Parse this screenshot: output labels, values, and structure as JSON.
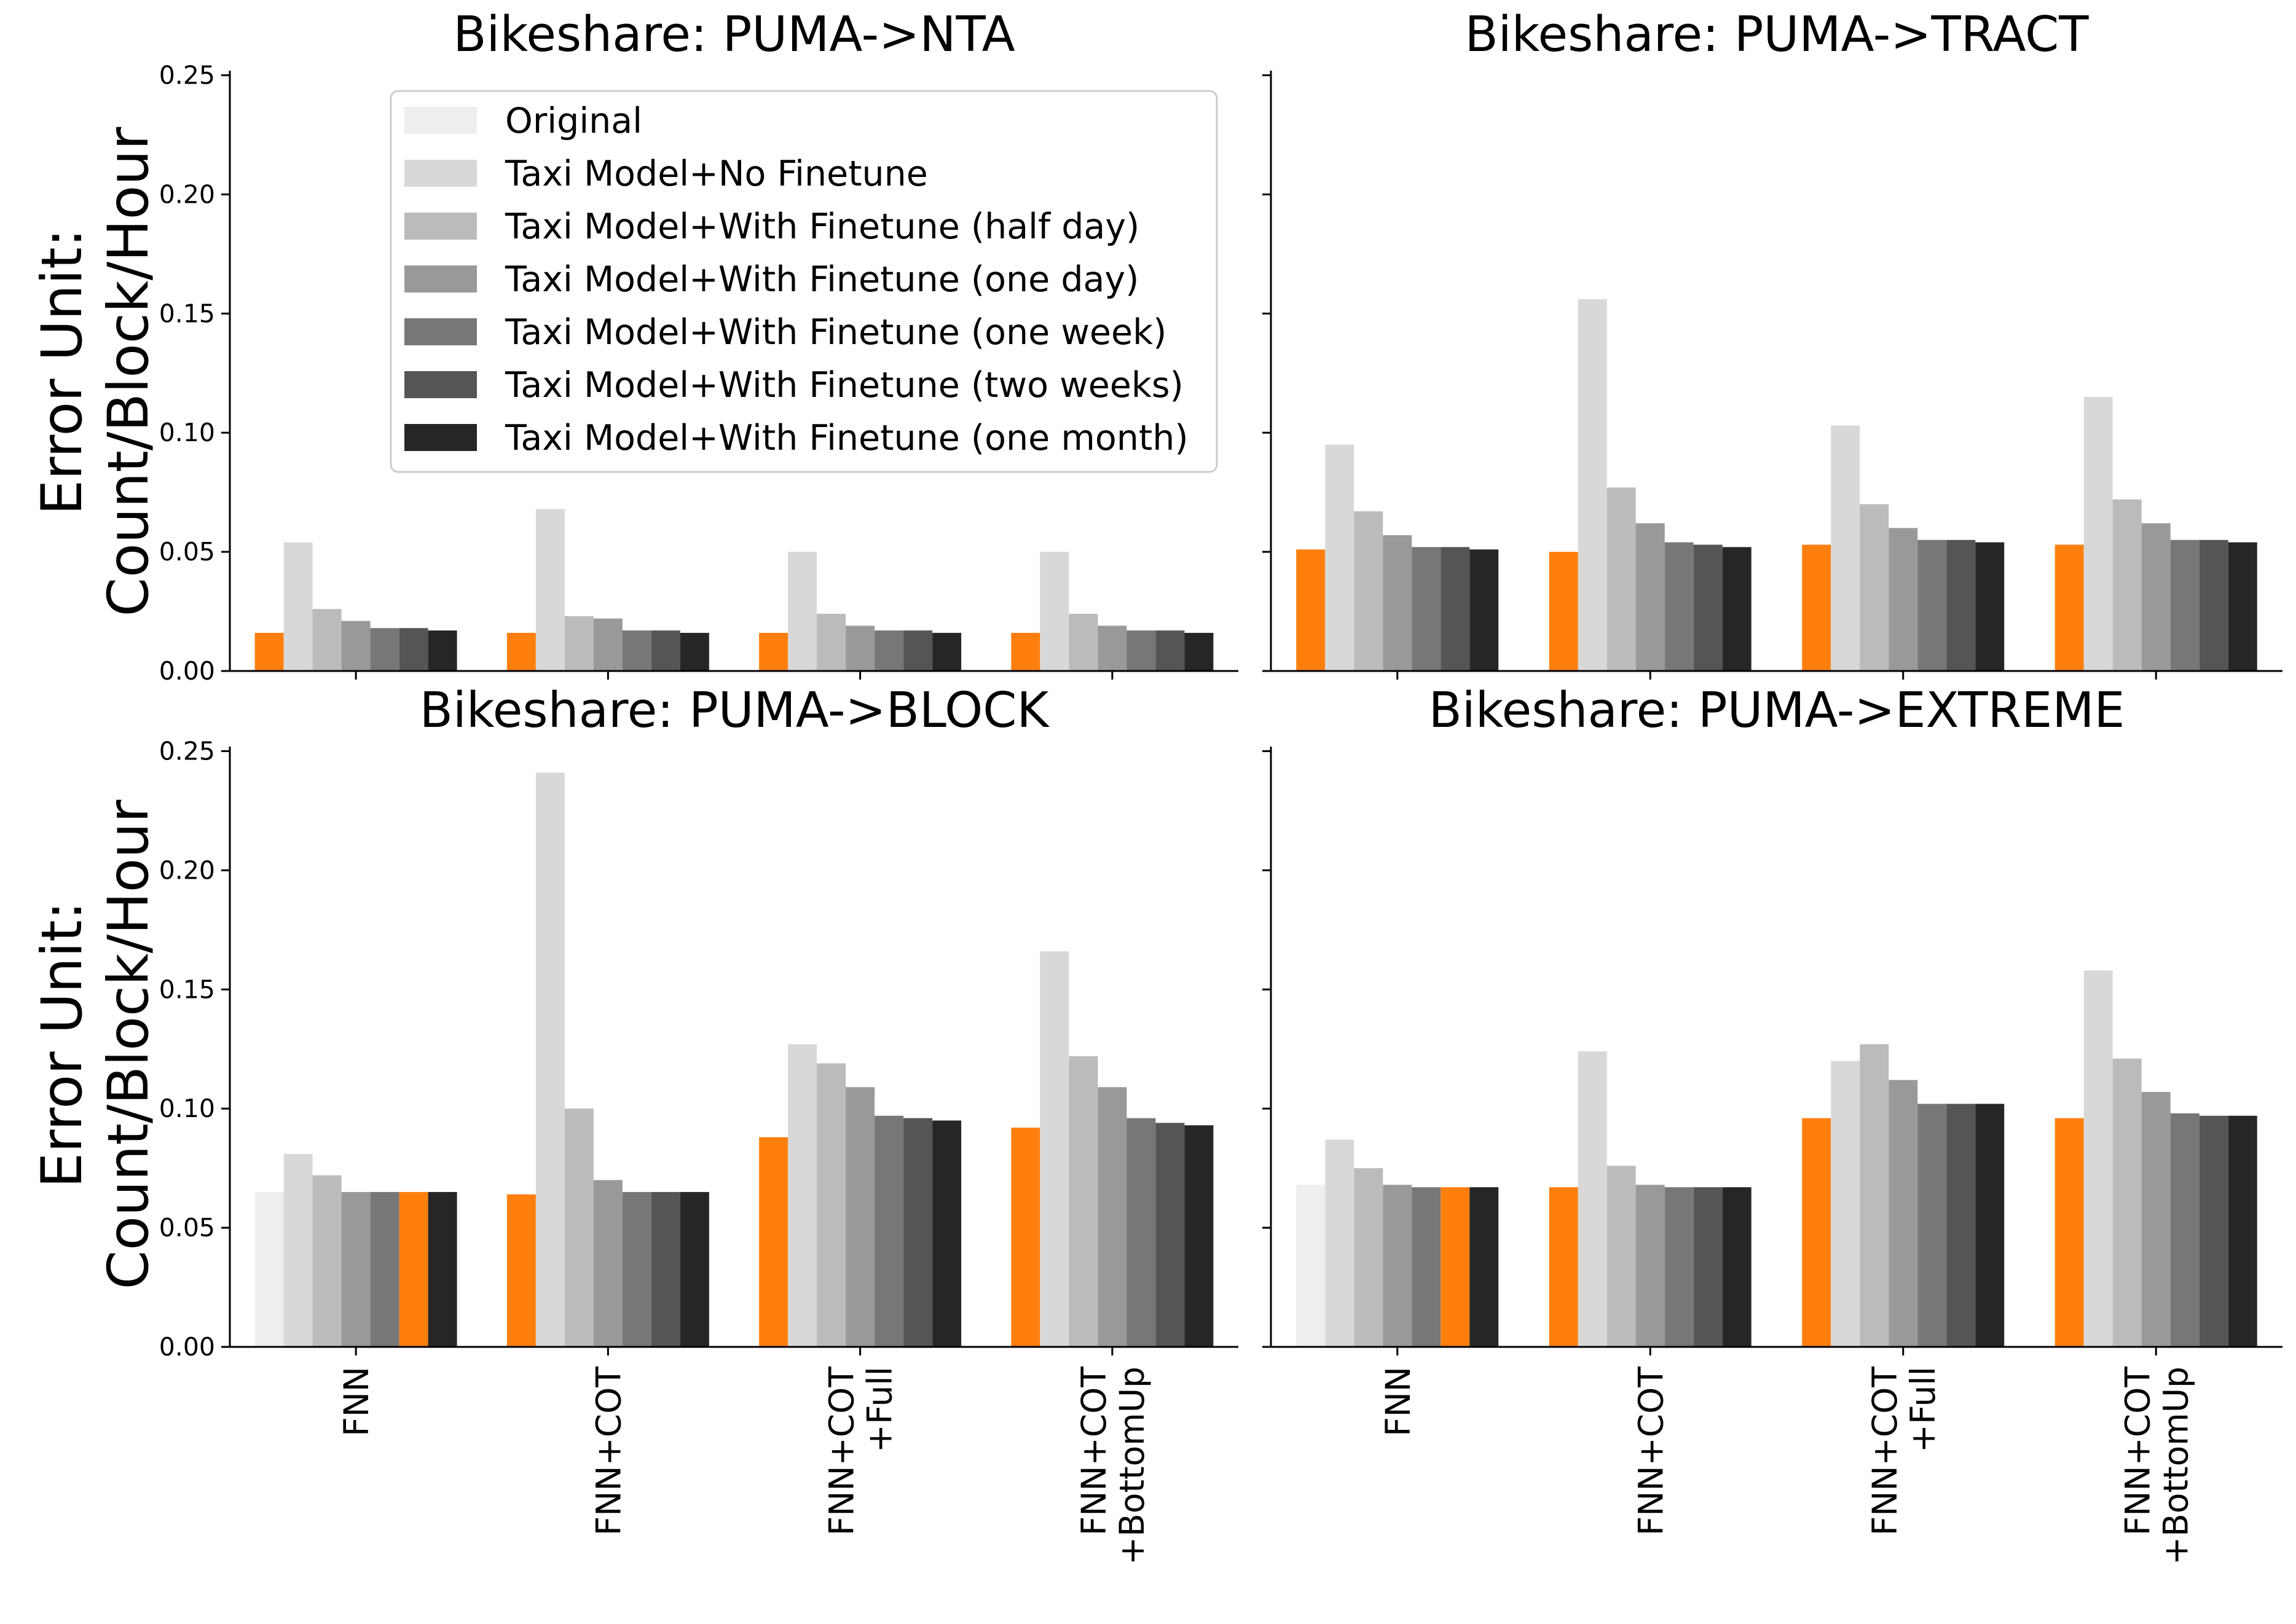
{
  "figure": {
    "ylabel_line1": "Error Unit:",
    "ylabel_line2": "Count/Block/Hour"
  },
  "chart_data": [
    {
      "type": "bar",
      "title": "Bikeshare: PUMA->NTA",
      "categories": [
        "FNN",
        "FNN+COT",
        "FNN+COT\n+Full",
        "FNN+COT\n+BottomUp"
      ],
      "ylim": [
        0,
        0.25
      ],
      "yticks": [
        "0.00",
        "0.05",
        "0.10",
        "0.15",
        "0.20",
        "0.25"
      ],
      "highlight": [
        0,
        0,
        0,
        0
      ],
      "series": [
        {
          "name": "Original",
          "values": [
            0.016,
            0.016,
            0.016,
            0.016
          ]
        },
        {
          "name": "Taxi Model+No Finetune",
          "values": [
            0.054,
            0.068,
            0.05,
            0.05
          ]
        },
        {
          "name": "Taxi Model+With Finetune (half day)",
          "values": [
            0.026,
            0.023,
            0.024,
            0.024
          ]
        },
        {
          "name": "Taxi Model+With Finetune (one day)",
          "values": [
            0.021,
            0.022,
            0.019,
            0.019
          ]
        },
        {
          "name": "Taxi Model+With Finetune (one week)",
          "values": [
            0.018,
            0.017,
            0.017,
            0.017
          ]
        },
        {
          "name": "Taxi Model+With Finetune (two weeks)",
          "values": [
            0.018,
            0.017,
            0.017,
            0.017
          ]
        },
        {
          "name": "Taxi Model+With Finetune (one month)",
          "values": [
            0.017,
            0.016,
            0.016,
            0.016
          ]
        }
      ]
    },
    {
      "type": "bar",
      "title": "Bikeshare: PUMA->TRACT",
      "categories": [
        "FNN",
        "FNN+COT",
        "FNN+COT\n+Full",
        "FNN+COT\n+BottomUp"
      ],
      "ylim": [
        0,
        0.25
      ],
      "yticks": [
        "0.00",
        "0.05",
        "0.10",
        "0.15",
        "0.20",
        "0.25"
      ],
      "highlight": [
        0,
        0,
        0,
        0
      ],
      "series": [
        {
          "name": "Original",
          "values": [
            0.051,
            0.05,
            0.053,
            0.053
          ]
        },
        {
          "name": "Taxi Model+No Finetune",
          "values": [
            0.095,
            0.156,
            0.103,
            0.115
          ]
        },
        {
          "name": "Taxi Model+With Finetune (half day)",
          "values": [
            0.067,
            0.077,
            0.07,
            0.072
          ]
        },
        {
          "name": "Taxi Model+With Finetune (one day)",
          "values": [
            0.057,
            0.062,
            0.06,
            0.062
          ]
        },
        {
          "name": "Taxi Model+With Finetune (one week)",
          "values": [
            0.052,
            0.054,
            0.055,
            0.055
          ]
        },
        {
          "name": "Taxi Model+With Finetune (two weeks)",
          "values": [
            0.052,
            0.053,
            0.055,
            0.055
          ]
        },
        {
          "name": "Taxi Model+With Finetune (one month)",
          "values": [
            0.051,
            0.052,
            0.054,
            0.054
          ]
        }
      ]
    },
    {
      "type": "bar",
      "title": "Bikeshare: PUMA->BLOCK",
      "categories": [
        "FNN",
        "FNN+COT",
        "FNN+COT\n+Full",
        "FNN+COT\n+BottomUp"
      ],
      "ylim": [
        0,
        0.25
      ],
      "yticks": [
        "0.00",
        "0.05",
        "0.10",
        "0.15",
        "0.20",
        "0.25"
      ],
      "highlight": [
        5,
        0,
        0,
        0
      ],
      "series": [
        {
          "name": "Original",
          "values": [
            0.065,
            0.064,
            0.088,
            0.092
          ]
        },
        {
          "name": "Taxi Model+No Finetune",
          "values": [
            0.081,
            0.241,
            0.127,
            0.166
          ]
        },
        {
          "name": "Taxi Model+With Finetune (half day)",
          "values": [
            0.072,
            0.1,
            0.119,
            0.122
          ]
        },
        {
          "name": "Taxi Model+With Finetune (one day)",
          "values": [
            0.065,
            0.07,
            0.109,
            0.109
          ]
        },
        {
          "name": "Taxi Model+With Finetune (one week)",
          "values": [
            0.065,
            0.065,
            0.097,
            0.096
          ]
        },
        {
          "name": "Taxi Model+With Finetune (two weeks)",
          "values": [
            0.065,
            0.065,
            0.096,
            0.094
          ]
        },
        {
          "name": "Taxi Model+With Finetune (one month)",
          "values": [
            0.065,
            0.065,
            0.095,
            0.093
          ]
        }
      ]
    },
    {
      "type": "bar",
      "title": "Bikeshare: PUMA->EXTREME",
      "categories": [
        "FNN",
        "FNN+COT",
        "FNN+COT\n+Full",
        "FNN+COT\n+BottomUp"
      ],
      "ylim": [
        0,
        0.25
      ],
      "yticks": [
        "0.00",
        "0.05",
        "0.10",
        "0.15",
        "0.20",
        "0.25"
      ],
      "highlight": [
        5,
        0,
        0,
        0
      ],
      "series": [
        {
          "name": "Original",
          "values": [
            0.068,
            0.067,
            0.096,
            0.096
          ]
        },
        {
          "name": "Taxi Model+No Finetune",
          "values": [
            0.087,
            0.124,
            0.12,
            0.158
          ]
        },
        {
          "name": "Taxi Model+With Finetune (half day)",
          "values": [
            0.075,
            0.076,
            0.127,
            0.121
          ]
        },
        {
          "name": "Taxi Model+With Finetune (one day)",
          "values": [
            0.068,
            0.068,
            0.112,
            0.107
          ]
        },
        {
          "name": "Taxi Model+With Finetune (one week)",
          "values": [
            0.067,
            0.067,
            0.102,
            0.098
          ]
        },
        {
          "name": "Taxi Model+With Finetune (two weeks)",
          "values": [
            0.067,
            0.067,
            0.102,
            0.097
          ]
        },
        {
          "name": "Taxi Model+With Finetune (one month)",
          "values": [
            0.067,
            0.067,
            0.102,
            0.097
          ]
        }
      ]
    }
  ],
  "legend": {
    "location": "upper-right of top-left panel",
    "entries": [
      "Original",
      "Taxi Model+No Finetune",
      "Taxi Model+With Finetune (half day)",
      "Taxi Model+With Finetune (one day)",
      "Taxi Model+With Finetune (one week)",
      "Taxi Model+With Finetune (two weeks)",
      "Taxi Model+With Finetune (one month)"
    ]
  },
  "colors": {
    "series": [
      "#eeeeee",
      "#d8d8d8",
      "#bbbbbb",
      "#999999",
      "#777777",
      "#555555",
      "#262626"
    ],
    "highlight": "#ff7f0e",
    "axis": "#000000"
  }
}
